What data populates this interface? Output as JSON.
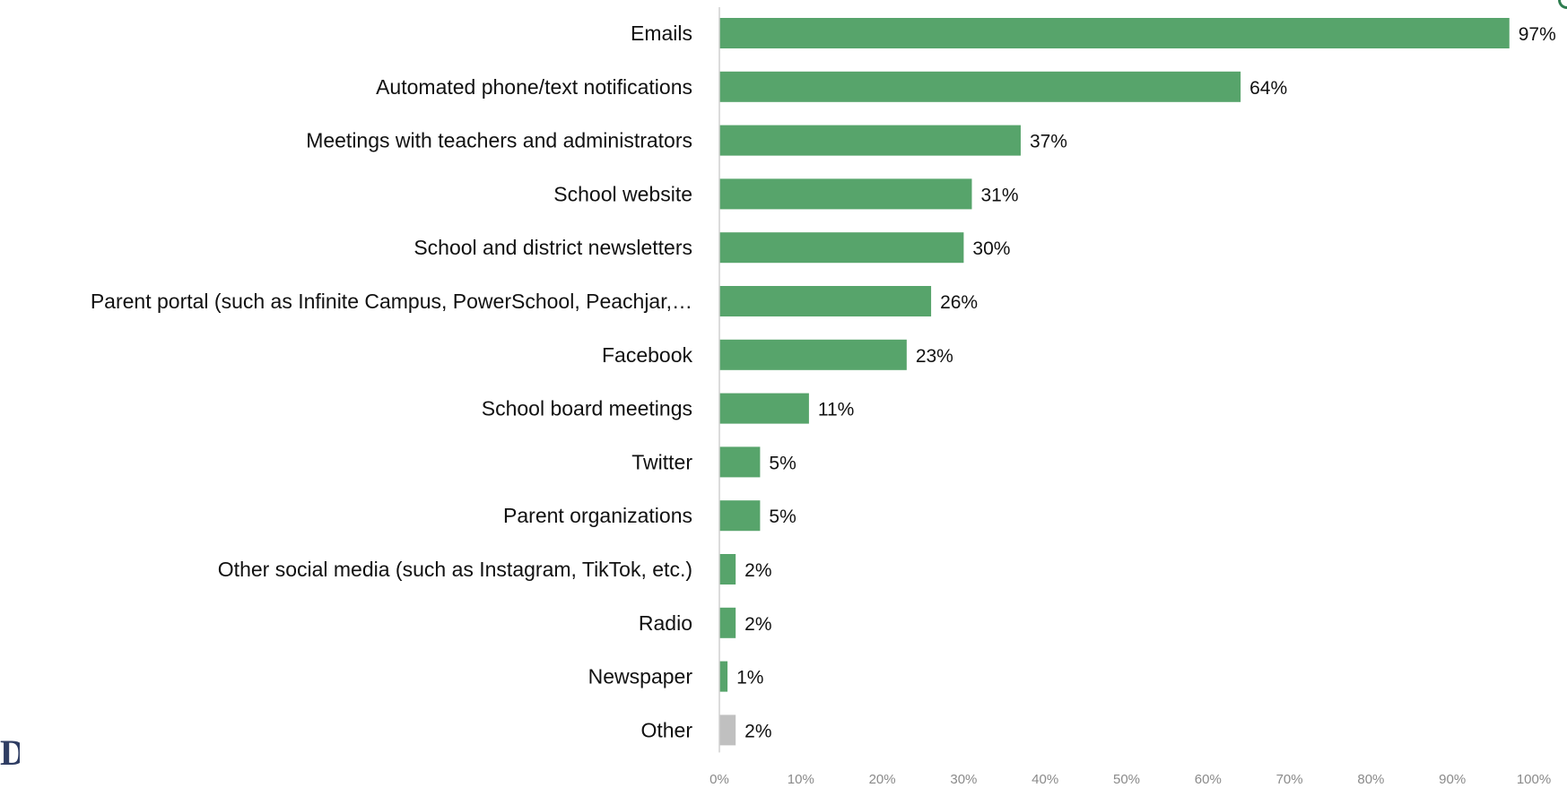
{
  "chart_data": {
    "type": "bar",
    "orientation": "horizontal",
    "categories": [
      "Emails",
      "Automated phone/text notifications",
      "Meetings with teachers and administrators",
      "School website",
      "School and district newsletters",
      "Parent portal (such as Infinite Campus, PowerSchool, Peachjar,…",
      "Facebook",
      "School board meetings",
      "Twitter",
      "Parent organizations",
      "Other social media (such as Instagram, TikTok, etc.)",
      "Radio",
      "Newspaper",
      "Other"
    ],
    "values": [
      97,
      64,
      37,
      31,
      30,
      26,
      23,
      11,
      5,
      5,
      2,
      2,
      1,
      2
    ],
    "value_labels": [
      "97%",
      "64%",
      "37%",
      "31%",
      "30%",
      "26%",
      "23%",
      "11%",
      "5%",
      "5%",
      "2%",
      "2%",
      "1%",
      "2%"
    ],
    "bar_colors": [
      "#57a46b",
      "#57a46b",
      "#57a46b",
      "#57a46b",
      "#57a46b",
      "#57a46b",
      "#57a46b",
      "#57a46b",
      "#57a46b",
      "#57a46b",
      "#57a46b",
      "#57a46b",
      "#57a46b",
      "#c0c0c0"
    ],
    "xlim": [
      0,
      100
    ],
    "ticks": [
      0,
      10,
      20,
      30,
      40,
      50,
      60,
      70,
      80,
      90,
      100
    ],
    "tick_labels": [
      "0%",
      "10%",
      "20%",
      "30%",
      "40%",
      "50%",
      "60%",
      "70%",
      "80%",
      "90%",
      "100%"
    ],
    "grid": false,
    "legend": "none",
    "title": "",
    "xlabel": "",
    "ylabel": ""
  },
  "colors": {
    "axis_line": "#d0d0d0",
    "logo": "#2f3d63"
  }
}
